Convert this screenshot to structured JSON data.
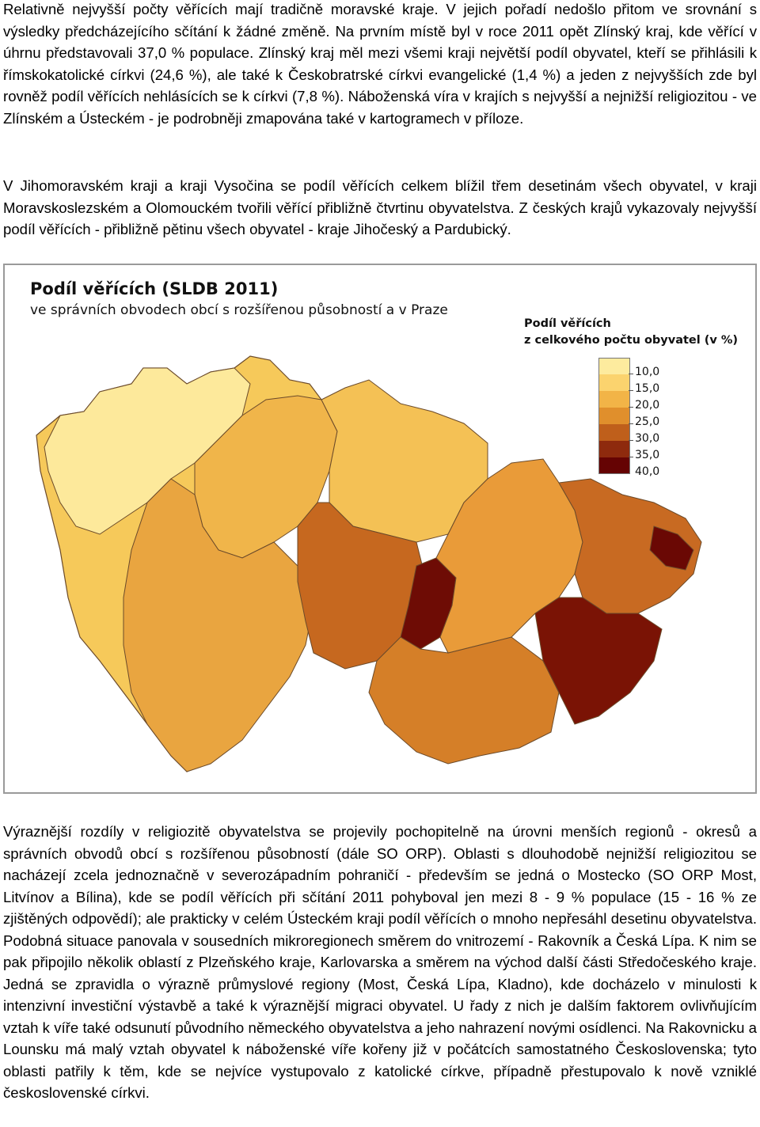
{
  "paragraphs": {
    "p1": "Relativně nejvyšší počty věřících mají tradičně moravské kraje. V jejich pořadí nedošlo přitom ve srovnání s výsledky předcházejícího sčítání k žádné změně. Na prvním místě byl v roce 2011 opět Zlínský kraj, kde věřící v úhrnu představovali 37,0 % populace. Zlínský kraj měl mezi všemi kraji největší podíl obyvatel, kteří se přihlásili k římskokatolické církvi (24,6 %), ale také k Českobratrské církvi evangelické (1,4 %) a jeden z nejvyšších zde byl rovněž podíl věřících nehlásících se k církvi (7,8 %). Náboženská víra v krajích s nejvyšší a nejnižší religiozitou - ve Zlínském a Ústeckém - je podrobněji zmapována také v kartogramech v příloze.",
    "p2": "V Jihomoravském kraji a kraji Vysočina se podíl věřících celkem blížil třem desetinám všech obyvatel, v kraji Moravskoslezském a Olomouckém tvořili věřící přibližně čtvrtinu obyvatelstva. Z českých krajů vykazovaly nejvyšší podíl věřících - přibližně pětinu všech obyvatel - kraje Jihočeský a Pardubický.",
    "p3": "Výraznější rozdíly v religiozitě obyvatelstva se projevily pochopitelně na úrovni menších regionů - okresů a správních obvodů obcí s rozšířenou působností (dále SO ORP). Oblasti s dlouhodobě nejnižší religiozitou se nacházejí zcela jednoznačně v severozápadním pohraničí - především se jedná o Mostecko (SO ORP Most, Litvínov a Bílina), kde se podíl věřících při sčítání 2011 pohyboval jen mezi 8 - 9 % populace (15 - 16 % ze zjištěných odpovědí); ale prakticky v celém Ústeckém kraji podíl věřících o mnoho nepřesáhl desetinu obyvatelstva. Podobná situace panovala v sousedních mikroregionech směrem do vnitrozemí - Rakovník a Česká Lípa. K nim se pak připojilo několik oblastí z Plzeňského kraje, Karlovarska a směrem na východ další části Středočeského kraje. Jedná se zpravidla o výrazně průmyslové regiony (Most, Česká Lípa, Kladno), kde docházelo v minulosti k intenzivní investiční výstavbě a také k výraznější migraci obyvatel. U řady z nich je dalším faktorem ovlivňujícím vztah k víře také odsunutí původního německého obyvatelstva a jeho nahrazení novými osídlenci. Na Rakovnicku a Lounsku má malý vztah obyvatel k náboženské víře kořeny již v počátcích samostatného Československa; tyto oblasti patřily k těm, kde se nejvíce vystupovalo z katolické církve, případně přestupovalo k nově vzniklé československé církvi."
  },
  "map": {
    "title": "Podíl věřících  (SLDB 2011)",
    "subtitle": "ve správních obvodech obcí s rozšířenou působností a v Praze",
    "legend_title_line1": "Podíl věřících",
    "legend_title_line2": "z celkového počtu obyvatel (v %)",
    "legend": [
      {
        "label": "10,0",
        "color": "#fdeb9e"
      },
      {
        "label": "15,0",
        "color": "#fbd36e"
      },
      {
        "label": "20,0",
        "color": "#f2b447"
      },
      {
        "label": "25,0",
        "color": "#e08f2c"
      },
      {
        "label": "30,0",
        "color": "#bf5f1b"
      },
      {
        "label": "35,0",
        "color": "#8e2a0d"
      },
      {
        "label": "40,0",
        "color": "#650303"
      }
    ],
    "legend_last_color": "#650303"
  }
}
